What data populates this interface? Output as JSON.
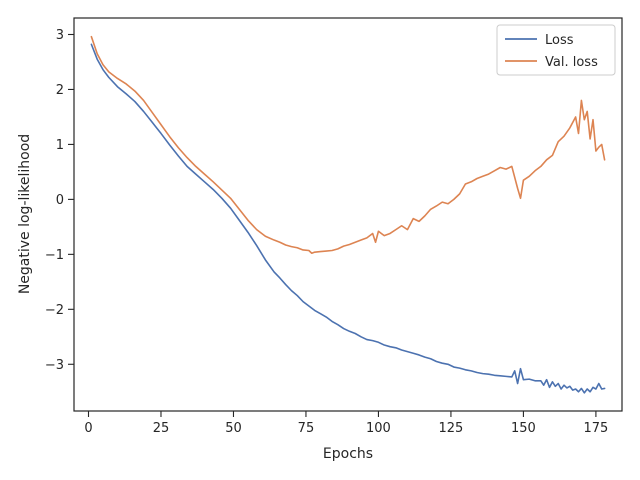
{
  "chart_data": {
    "type": "line",
    "xlabel": "Epochs",
    "ylabel": "Negative log-likelihood",
    "xlim": [
      -5,
      184
    ],
    "ylim": [
      -3.85,
      3.3
    ],
    "xticks": [
      0,
      25,
      50,
      75,
      100,
      125,
      150,
      175
    ],
    "yticks": [
      -3,
      -2,
      -1,
      0,
      1,
      2,
      3
    ],
    "xtick_labels": [
      "0",
      "25",
      "50",
      "75",
      "100",
      "125",
      "150",
      "175"
    ],
    "ytick_labels": [
      "−3",
      "−2",
      "−1",
      "0",
      "1",
      "2",
      "3"
    ],
    "grid": false,
    "legend_position": "top-right",
    "series": [
      {
        "name": "Loss",
        "color": "#4c72b0",
        "x": [
          1,
          3,
          5,
          7,
          10,
          13,
          16,
          19,
          22,
          25,
          28,
          31,
          34,
          37,
          40,
          43,
          46,
          49,
          52,
          55,
          58,
          61,
          64,
          66,
          68,
          70,
          72,
          74,
          76,
          78,
          80,
          82,
          84,
          86,
          88,
          90,
          92,
          94,
          96,
          98,
          100,
          102,
          104,
          106,
          108,
          110,
          112,
          114,
          116,
          118,
          120,
          122,
          124,
          126,
          128,
          130,
          132,
          134,
          136,
          138,
          140,
          142,
          144,
          146,
          147,
          148,
          149,
          150,
          152,
          154,
          156,
          157,
          158,
          159,
          160,
          161,
          162,
          163,
          164,
          165,
          166,
          167,
          168,
          169,
          170,
          171,
          172,
          173,
          174,
          175,
          176,
          177,
          178
        ],
        "values": [
          2.82,
          2.55,
          2.36,
          2.22,
          2.05,
          1.92,
          1.78,
          1.6,
          1.4,
          1.2,
          0.99,
          0.79,
          0.6,
          0.46,
          0.32,
          0.18,
          0.02,
          -0.16,
          -0.38,
          -0.6,
          -0.84,
          -1.1,
          -1.32,
          -1.43,
          -1.55,
          -1.66,
          -1.75,
          -1.86,
          -1.94,
          -2.02,
          -2.08,
          -2.14,
          -2.22,
          -2.28,
          -2.35,
          -2.4,
          -2.44,
          -2.5,
          -2.55,
          -2.57,
          -2.6,
          -2.65,
          -2.68,
          -2.7,
          -2.74,
          -2.77,
          -2.8,
          -2.83,
          -2.87,
          -2.9,
          -2.95,
          -2.98,
          -3.0,
          -3.05,
          -3.07,
          -3.1,
          -3.12,
          -3.15,
          -3.17,
          -3.18,
          -3.2,
          -3.21,
          -3.22,
          -3.23,
          -3.12,
          -3.35,
          -3.08,
          -3.28,
          -3.27,
          -3.3,
          -3.3,
          -3.38,
          -3.28,
          -3.42,
          -3.32,
          -3.4,
          -3.35,
          -3.45,
          -3.38,
          -3.43,
          -3.4,
          -3.47,
          -3.45,
          -3.5,
          -3.44,
          -3.52,
          -3.45,
          -3.5,
          -3.42,
          -3.45,
          -3.35,
          -3.45,
          -3.44
        ]
      },
      {
        "name": "Val. loss",
        "color": "#dd8452",
        "x": [
          1,
          3,
          5,
          7,
          10,
          13,
          16,
          19,
          22,
          25,
          28,
          31,
          34,
          37,
          40,
          43,
          46,
          49,
          52,
          55,
          58,
          61,
          64,
          66,
          68,
          70,
          72,
          74,
          76,
          77,
          78,
          80,
          82,
          84,
          86,
          88,
          90,
          92,
          94,
          96,
          98,
          99,
          100,
          102,
          104,
          106,
          108,
          110,
          112,
          114,
          116,
          118,
          120,
          122,
          124,
          126,
          128,
          130,
          132,
          134,
          136,
          138,
          140,
          142,
          144,
          146,
          148,
          149,
          150,
          152,
          154,
          156,
          158,
          160,
          162,
          164,
          166,
          168,
          169,
          170,
          171,
          172,
          173,
          174,
          175,
          176,
          177,
          178
        ],
        "values": [
          2.96,
          2.65,
          2.45,
          2.32,
          2.2,
          2.1,
          1.97,
          1.8,
          1.58,
          1.36,
          1.14,
          0.94,
          0.76,
          0.6,
          0.46,
          0.32,
          0.17,
          0.02,
          -0.18,
          -0.38,
          -0.55,
          -0.67,
          -0.74,
          -0.78,
          -0.83,
          -0.86,
          -0.88,
          -0.92,
          -0.93,
          -0.98,
          -0.96,
          -0.95,
          -0.94,
          -0.93,
          -0.9,
          -0.85,
          -0.82,
          -0.78,
          -0.74,
          -0.7,
          -0.62,
          -0.78,
          -0.58,
          -0.66,
          -0.62,
          -0.55,
          -0.48,
          -0.55,
          -0.35,
          -0.4,
          -0.3,
          -0.18,
          -0.12,
          -0.05,
          -0.08,
          0.0,
          0.1,
          0.28,
          0.32,
          0.38,
          0.42,
          0.46,
          0.52,
          0.58,
          0.55,
          0.6,
          0.2,
          0.02,
          0.35,
          0.42,
          0.52,
          0.6,
          0.72,
          0.8,
          1.05,
          1.15,
          1.3,
          1.5,
          1.2,
          1.8,
          1.45,
          1.6,
          1.1,
          1.45,
          0.88,
          0.95,
          1.0,
          0.72
        ]
      }
    ]
  }
}
